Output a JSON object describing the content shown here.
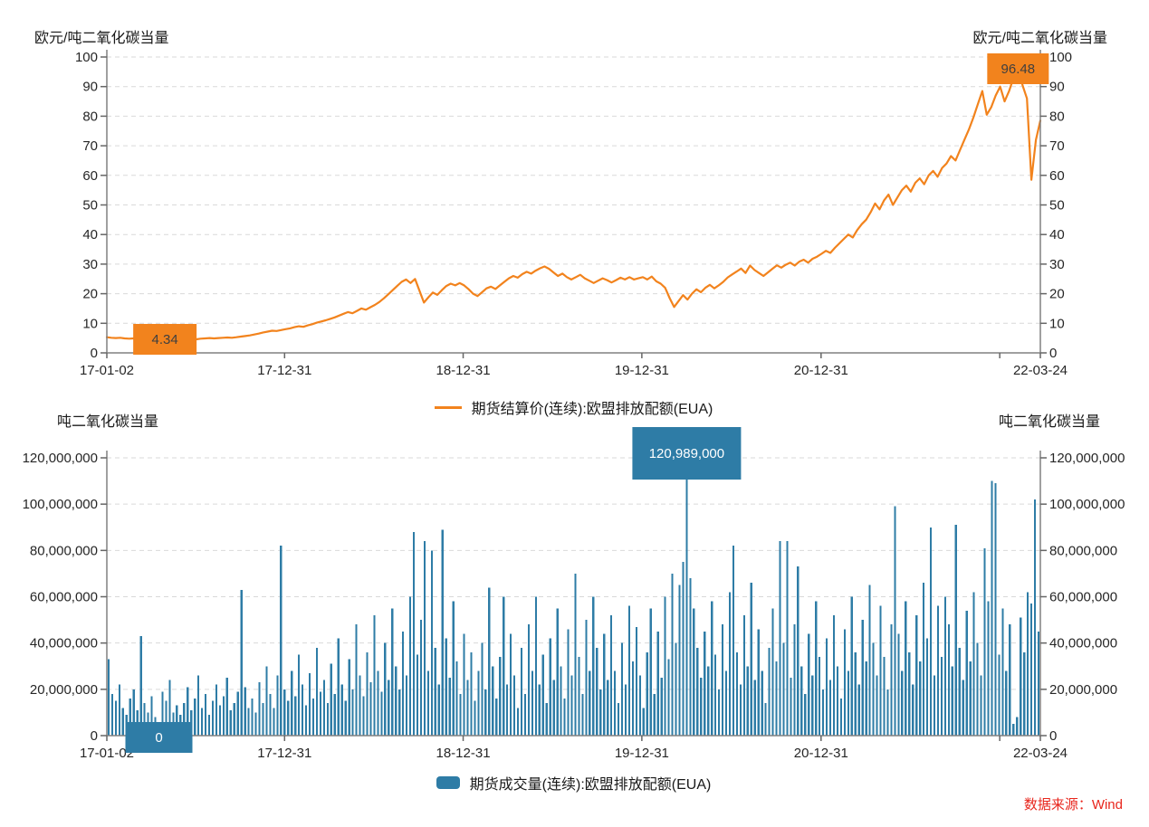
{
  "source_note": {
    "text": "数据来源：Wind",
    "color": "#e8261d"
  },
  "chart_data": [
    {
      "id": "price",
      "type": "line",
      "unit_label": "欧元/吨二氧化碳当量",
      "series_name": "期货结算价(连续):欧盟排放配额(EUA)",
      "color": "#F2831D",
      "callout_text_color": "#3f3f3f",
      "ylim": [
        0,
        100
      ],
      "y_ticks": [
        0,
        10,
        20,
        30,
        40,
        50,
        60,
        70,
        80,
        90,
        100
      ],
      "x_ticks": [
        {
          "f": 0.0,
          "label": "17-01-02"
        },
        {
          "f": 0.1904,
          "label": "17-12-31"
        },
        {
          "f": 0.3817,
          "label": "18-12-31"
        },
        {
          "f": 0.5731,
          "label": "19-12-31"
        },
        {
          "f": 0.7651,
          "label": "20-12-31"
        },
        {
          "f": 0.9565,
          "label": ""
        },
        {
          "f": 1.0,
          "label": "22-03-24"
        }
      ],
      "min_label": {
        "text": "4.34",
        "value": 4.34
      },
      "max_label": {
        "text": "96.48",
        "value": 96.48
      },
      "grid": "horizontal-dashed",
      "legend_position": "bottom-center",
      "values": [
        5.3,
        5.1,
        5.0,
        5.1,
        4.9,
        4.8,
        4.9,
        5.0,
        4.9,
        4.7,
        4.6,
        4.5,
        4.4,
        4.34,
        4.5,
        4.6,
        4.5,
        4.7,
        4.8,
        4.7,
        4.6,
        4.8,
        4.9,
        5.0,
        4.9,
        5.0,
        5.1,
        5.2,
        5.1,
        5.3,
        5.5,
        5.7,
        5.9,
        6.2,
        6.5,
        6.9,
        7.2,
        7.5,
        7.4,
        7.7,
        8.0,
        8.3,
        8.7,
        9.0,
        8.8,
        9.3,
        9.7,
        10.2,
        10.6,
        11.0,
        11.5,
        12.0,
        12.6,
        13.2,
        13.8,
        13.4,
        14.2,
        15.0,
        14.6,
        15.4,
        16.2,
        17.2,
        18.4,
        19.8,
        21.2,
        22.6,
        24.0,
        24.8,
        23.6,
        25.0,
        21.0,
        17.0,
        18.8,
        20.4,
        19.6,
        21.2,
        22.6,
        23.4,
        22.8,
        23.6,
        22.8,
        21.5,
        20.0,
        19.2,
        20.5,
        21.8,
        22.4,
        21.6,
        22.8,
        24.0,
        25.2,
        26.0,
        25.4,
        26.6,
        27.4,
        26.8,
        27.8,
        28.6,
        29.2,
        28.4,
        27.2,
        26.0,
        26.8,
        25.6,
        24.8,
        25.6,
        26.4,
        25.2,
        24.4,
        23.6,
        24.4,
        25.2,
        24.6,
        23.8,
        24.6,
        25.4,
        24.8,
        25.6,
        24.8,
        25.2,
        25.6,
        24.8,
        25.8,
        24.2,
        23.4,
        22.0,
        18.5,
        15.5,
        17.5,
        19.5,
        18.0,
        20.0,
        21.5,
        20.5,
        22.0,
        23.0,
        21.8,
        22.8,
        24.0,
        25.5,
        26.5,
        27.5,
        28.5,
        27.0,
        29.5,
        28.0,
        27.0,
        26.0,
        27.2,
        28.4,
        29.6,
        28.8,
        29.8,
        30.5,
        29.5,
        30.8,
        31.5,
        30.5,
        31.8,
        32.5,
        33.5,
        34.5,
        33.8,
        35.5,
        37.0,
        38.5,
        40.0,
        39.0,
        41.5,
        43.5,
        45.0,
        47.5,
        50.5,
        48.5,
        51.5,
        53.5,
        50.0,
        52.5,
        55.0,
        56.5,
        54.5,
        57.5,
        59.0,
        57.0,
        60.0,
        61.5,
        59.5,
        62.5,
        64.0,
        66.5,
        65.0,
        68.5,
        72.0,
        75.5,
        79.5,
        84.0,
        88.5,
        80.5,
        83.0,
        87.0,
        90.0,
        85.0,
        88.5,
        93.0,
        96.48,
        90.5,
        86.0,
        58.5,
        72.0,
        78.5
      ]
    },
    {
      "id": "volume",
      "type": "bar",
      "unit_label": "吨二氧化碳当量",
      "series_name": "期货成交量(连续):欧盟排放配额(EUA)",
      "color": "#2E7CA6",
      "callout_text_color": "#ffffff",
      "ylim": [
        0,
        120000000
      ],
      "y_tick_labels": [
        "0",
        "20,000,000",
        "40,000,000",
        "60,000,000",
        "80,000,000",
        "100,000,000",
        "120,000,000"
      ],
      "y_ticks_millions": [
        0,
        20,
        40,
        60,
        80,
        100,
        120
      ],
      "x_ticks": [
        {
          "f": 0.0,
          "label": "17-01-02"
        },
        {
          "f": 0.1904,
          "label": "17-12-31"
        },
        {
          "f": 0.3817,
          "label": "18-12-31"
        },
        {
          "f": 0.5731,
          "label": "19-12-31"
        },
        {
          "f": 0.7651,
          "label": "20-12-31"
        },
        {
          "f": 0.9565,
          "label": ""
        },
        {
          "f": 1.0,
          "label": "22-03-24"
        }
      ],
      "min_label": {
        "text": "0",
        "value": 0
      },
      "max_label": {
        "text": "120,989,000",
        "value": 120989000
      },
      "grid": "horizontal-dashed",
      "legend_position": "bottom-center",
      "unit_scale": 1000000,
      "values_millions": [
        33,
        18,
        15,
        22,
        12,
        9,
        16,
        20,
        11,
        43,
        14,
        10,
        17,
        8,
        0,
        19,
        15,
        24,
        10,
        13,
        9,
        14,
        21,
        11,
        16,
        26,
        12,
        18,
        9,
        15,
        22,
        13,
        17,
        25,
        11,
        14,
        19,
        63,
        21,
        12,
        16,
        10,
        23,
        14,
        30,
        18,
        12,
        26,
        82,
        20,
        15,
        28,
        17,
        35,
        22,
        13,
        27,
        16,
        38,
        19,
        24,
        14,
        31,
        18,
        42,
        22,
        15,
        33,
        20,
        48,
        26,
        17,
        36,
        23,
        52,
        28,
        19,
        40,
        24,
        55,
        30,
        20,
        45,
        26,
        60,
        88,
        35,
        50,
        84,
        28,
        80,
        38,
        22,
        89,
        42,
        25,
        58,
        32,
        18,
        44,
        24,
        36,
        15,
        28,
        40,
        20,
        64,
        30,
        16,
        34,
        60,
        22,
        44,
        26,
        12,
        38,
        18,
        48,
        28,
        60,
        22,
        35,
        14,
        42,
        24,
        55,
        30,
        16,
        46,
        26,
        70,
        34,
        18,
        50,
        28,
        60,
        38,
        20,
        44,
        24,
        52,
        28,
        14,
        40,
        22,
        56,
        32,
        47,
        26,
        12,
        36,
        55,
        18,
        45,
        25,
        60,
        33,
        70,
        40,
        65,
        75,
        120.989,
        68,
        55,
        38,
        25,
        45,
        30,
        58,
        35,
        20,
        48,
        28,
        62,
        82,
        36,
        22,
        52,
        30,
        66,
        24,
        46,
        28,
        14,
        38,
        55,
        32,
        84,
        40,
        84,
        25,
        48,
        73,
        30,
        18,
        44,
        26,
        58,
        34,
        20,
        42,
        24,
        52,
        30,
        16,
        46,
        28,
        60,
        36,
        22,
        50,
        32,
        65,
        40,
        26,
        56,
        34,
        20,
        48,
        99,
        44,
        28,
        58,
        36,
        22,
        52,
        32,
        66,
        42,
        90,
        26,
        56,
        34,
        60,
        48,
        30,
        91,
        38,
        24,
        54,
        32,
        62,
        40,
        26,
        81,
        58,
        110,
        109,
        35,
        55,
        28,
        48,
        5,
        8,
        51,
        36,
        62,
        57,
        102,
        45
      ]
    }
  ]
}
